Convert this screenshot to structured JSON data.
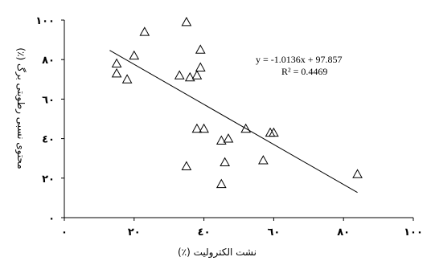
{
  "chart_data": {
    "type": "scatter",
    "title": "",
    "xlabel": "نشت الکترولیت (٪)",
    "ylabel": "محتوی نسبی رطوبتی برگ (٪)",
    "xlim": [
      0,
      100
    ],
    "ylim": [
      0,
      100
    ],
    "x_ticks": [
      0,
      20,
      40,
      60,
      80,
      100
    ],
    "y_ticks": [
      0,
      20,
      40,
      60,
      80,
      100
    ],
    "x_tick_labels": [
      "٠",
      "٢٠",
      "٤٠",
      "٦٠",
      "٨٠",
      "١٠٠"
    ],
    "y_tick_labels": [
      "٠",
      "٢٠",
      "٤٠",
      "٦٠",
      "٨٠",
      "١٠٠"
    ],
    "grid": false,
    "legend": "none",
    "marker": "open-triangle",
    "points": [
      [
        15,
        78
      ],
      [
        15,
        73
      ],
      [
        18,
        70
      ],
      [
        20,
        82
      ],
      [
        23,
        94
      ],
      [
        35,
        99
      ],
      [
        33,
        72
      ],
      [
        36,
        71
      ],
      [
        38,
        72
      ],
      [
        39,
        76
      ],
      [
        39,
        85
      ],
      [
        38,
        45
      ],
      [
        40,
        45
      ],
      [
        35,
        26
      ],
      [
        45,
        39
      ],
      [
        47,
        40
      ],
      [
        46,
        28
      ],
      [
        45,
        17
      ],
      [
        52,
        45
      ],
      [
        57,
        29
      ],
      [
        59,
        43
      ],
      [
        60,
        43
      ],
      [
        84,
        22
      ]
    ],
    "trendline": {
      "slope": -1.0136,
      "intercept": 97.857,
      "x_range": [
        13,
        84
      ]
    },
    "annotations": {
      "equation": "y = -1.0136x + 97.857",
      "r_squared": "R² = 0.4469"
    },
    "colors": {
      "axis": "#000000",
      "marker": "#000000",
      "trendline": "#000000"
    }
  }
}
